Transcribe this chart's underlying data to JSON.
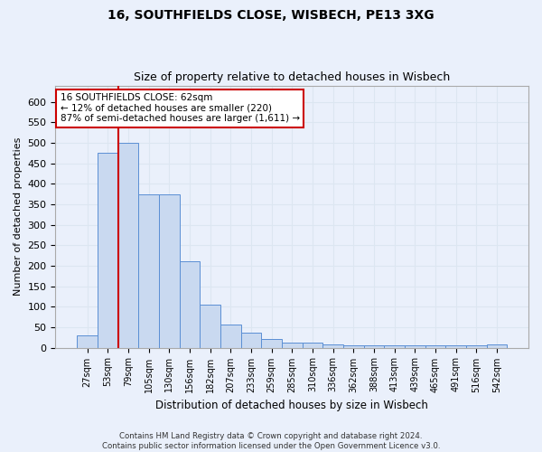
{
  "title1": "16, SOUTHFIELDS CLOSE, WISBECH, PE13 3XG",
  "title2": "Size of property relative to detached houses in Wisbech",
  "xlabel": "Distribution of detached houses by size in Wisbech",
  "ylabel": "Number of detached properties",
  "categories": [
    "27sqm",
    "53sqm",
    "79sqm",
    "105sqm",
    "130sqm",
    "156sqm",
    "182sqm",
    "207sqm",
    "233sqm",
    "259sqm",
    "285sqm",
    "310sqm",
    "336sqm",
    "362sqm",
    "388sqm",
    "413sqm",
    "439sqm",
    "465sqm",
    "491sqm",
    "516sqm",
    "542sqm"
  ],
  "values": [
    30,
    475,
    500,
    375,
    375,
    210,
    105,
    57,
    37,
    22,
    13,
    13,
    8,
    5,
    5,
    5,
    5,
    5,
    5,
    5,
    7
  ],
  "bar_color": "#c9d9f0",
  "bar_edge_color": "#5b8fd4",
  "red_line_x": 1.5,
  "annotation_text": "16 SOUTHFIELDS CLOSE: 62sqm\n← 12% of detached houses are smaller (220)\n87% of semi-detached houses are larger (1,611) →",
  "annotation_box_color": "#ffffff",
  "annotation_box_edge": "#cc0000",
  "red_line_color": "#cc0000",
  "grid_color": "#dce6f1",
  "background_color": "#eaf0fb",
  "footer1": "Contains HM Land Registry data © Crown copyright and database right 2024.",
  "footer2": "Contains public sector information licensed under the Open Government Licence v3.0.",
  "ylim": [
    0,
    640
  ],
  "yticks": [
    0,
    50,
    100,
    150,
    200,
    250,
    300,
    350,
    400,
    450,
    500,
    550,
    600
  ]
}
